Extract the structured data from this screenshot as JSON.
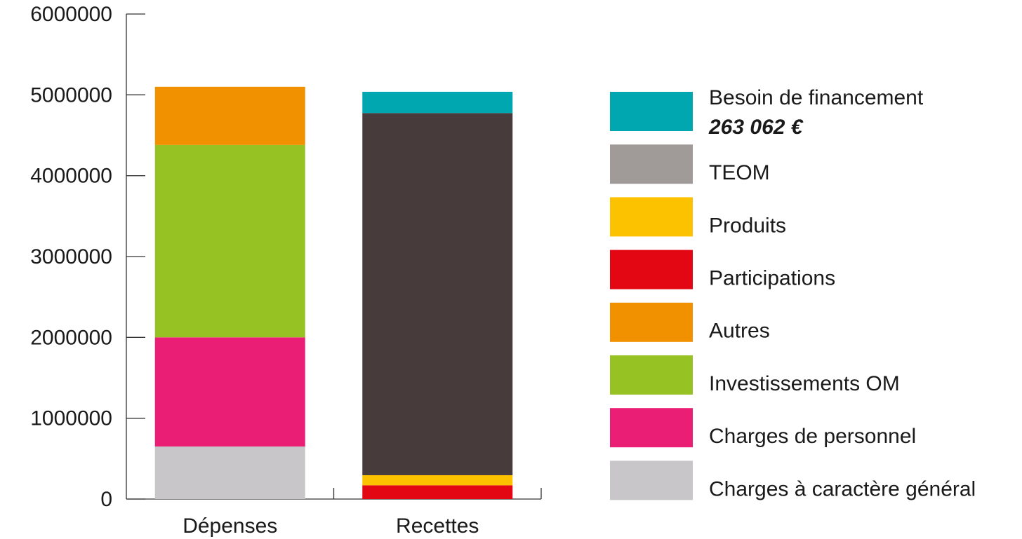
{
  "chart_data": {
    "type": "stacked_bar",
    "categories": [
      "Dépenses",
      "Recettes"
    ],
    "ylim": [
      0,
      6000000
    ],
    "yticks": [
      0,
      1000000,
      2000000,
      3000000,
      4000000,
      5000000,
      6000000
    ],
    "series": [
      {
        "name": "Charges à caractère général",
        "color": "#c8c6c8",
        "values": [
          650000,
          null
        ]
      },
      {
        "name": "Charges de personnel",
        "color": "#e91e74",
        "values": [
          1350000,
          null
        ]
      },
      {
        "name": "Investissements OM",
        "color": "#97c224",
        "values": [
          2380000,
          null
        ]
      },
      {
        "name": "Autres",
        "color": "#f29100",
        "values": [
          720000,
          null
        ]
      },
      {
        "name": "Participations",
        "color": "#e30613",
        "values": [
          null,
          170000
        ]
      },
      {
        "name": "Produits",
        "color": "#fcc200",
        "values": [
          null,
          125000
        ]
      },
      {
        "name": "TEOM",
        "color": "#483b3b",
        "legend_color": "#a09a98",
        "values": [
          null,
          4480000
        ]
      },
      {
        "name": "Besoin de financement",
        "color": "#00a6b0",
        "values": [
          null,
          263062
        ],
        "value_labels": [
          null,
          "263 062 €"
        ]
      }
    ]
  }
}
